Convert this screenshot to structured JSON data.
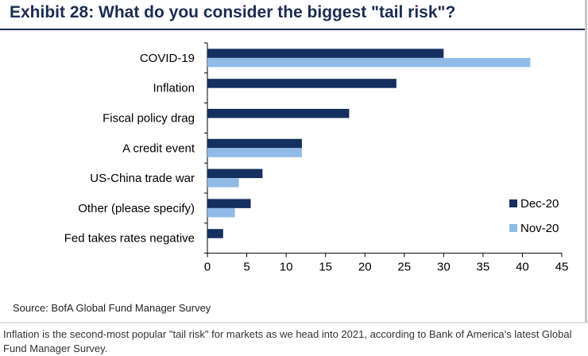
{
  "title": "Exhibit 28: What do you consider the biggest \"tail risk\"?",
  "source": "Source: BofA Global Fund Manager Survey",
  "caption": "Inflation is the second-most popular \"tail risk\" for markets as we head into 2021, according to Bank of America's latest Global Fund Manager Survey.",
  "chart_data": {
    "type": "bar",
    "orientation": "horizontal",
    "categories": [
      "COVID-19",
      "Inflation",
      "Fiscal policy drag",
      "A credit event",
      "US-China trade war",
      "Other (please specify)",
      "Fed takes rates negative"
    ],
    "series": [
      {
        "name": "Dec-20",
        "color": "#14305e",
        "values": [
          30,
          24,
          18,
          12,
          7,
          5.5,
          2
        ]
      },
      {
        "name": "Nov-20",
        "color": "#8fbbe6",
        "values": [
          41,
          null,
          null,
          12,
          4,
          3.5,
          null
        ]
      }
    ],
    "xlim": [
      0,
      45
    ],
    "xticks": [
      0,
      5,
      10,
      15,
      20,
      25,
      30,
      35,
      40,
      45
    ],
    "legend_position": "bottom-right",
    "grid": false
  }
}
